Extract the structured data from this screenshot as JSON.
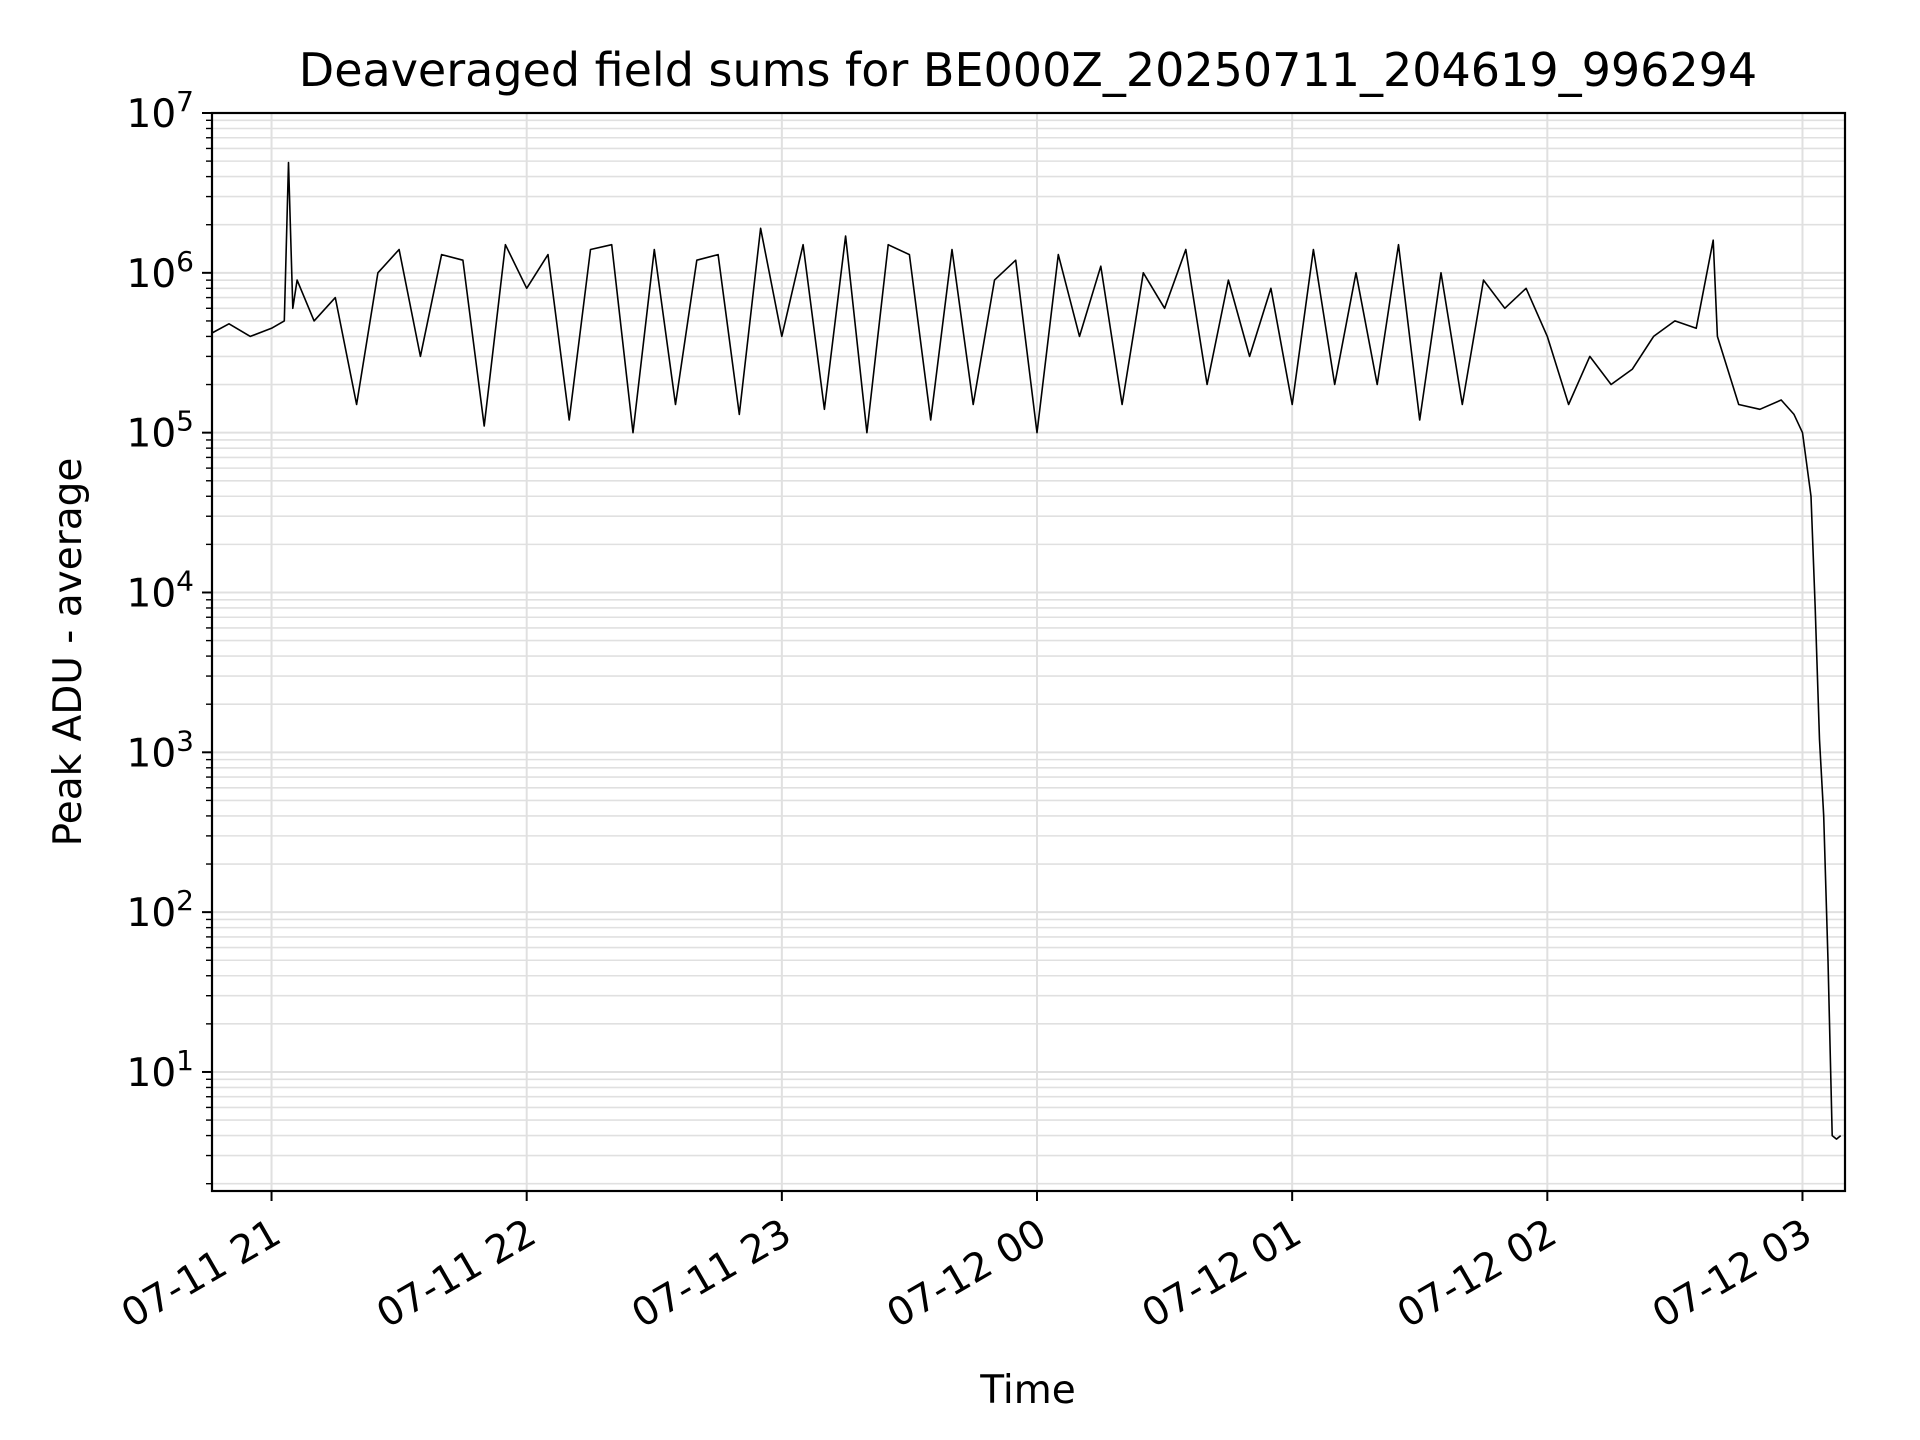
{
  "chart_data": {
    "type": "line",
    "title": "Deaveraged field sums for BE000Z_20250711_204619_996294",
    "xlabel": "Time",
    "ylabel": "Peak ADU - average",
    "yscale": "log",
    "ylim": [
      1.8,
      10000000
    ],
    "xlim": [
      "2025-07-11 20:46",
      "2025-07-12 03:10"
    ],
    "grid": true,
    "legend": "none",
    "line_color": "#000000",
    "grid_color": "#e0e0e0",
    "x_ticks": [
      {
        "t": "2025-07-11 21:00",
        "label": "07-11 21"
      },
      {
        "t": "2025-07-11 22:00",
        "label": "07-11 22"
      },
      {
        "t": "2025-07-11 23:00",
        "label": "07-11 23"
      },
      {
        "t": "2025-07-12 00:00",
        "label": "07-12 00"
      },
      {
        "t": "2025-07-12 01:00",
        "label": "07-12 01"
      },
      {
        "t": "2025-07-12 02:00",
        "label": "07-12 02"
      },
      {
        "t": "2025-07-12 03:00",
        "label": "07-12 03"
      }
    ],
    "y_ticks": [
      {
        "value": 10,
        "base": "10",
        "exp": "1"
      },
      {
        "value": 100,
        "base": "10",
        "exp": "2"
      },
      {
        "value": 1000,
        "base": "10",
        "exp": "3"
      },
      {
        "value": 10000,
        "base": "10",
        "exp": "4"
      },
      {
        "value": 100000,
        "base": "10",
        "exp": "5"
      },
      {
        "value": 1000000,
        "base": "10",
        "exp": "6"
      },
      {
        "value": 10000000,
        "base": "10",
        "exp": "7"
      }
    ],
    "series": [
      {
        "x": [
          "2025-07-11 20:46",
          "2025-07-11 20:50",
          "2025-07-11 20:55",
          "2025-07-11 21:00",
          "2025-07-11 21:03",
          "2025-07-11 21:04",
          "2025-07-11 21:05",
          "2025-07-11 21:06",
          "2025-07-11 21:10",
          "2025-07-11 21:15",
          "2025-07-11 21:20",
          "2025-07-11 21:25",
          "2025-07-11 21:30",
          "2025-07-11 21:35",
          "2025-07-11 21:40",
          "2025-07-11 21:45",
          "2025-07-11 21:50",
          "2025-07-11 21:55",
          "2025-07-11 22:00",
          "2025-07-11 22:05",
          "2025-07-11 22:10",
          "2025-07-11 22:15",
          "2025-07-11 22:20",
          "2025-07-11 22:25",
          "2025-07-11 22:30",
          "2025-07-11 22:35",
          "2025-07-11 22:40",
          "2025-07-11 22:45",
          "2025-07-11 22:50",
          "2025-07-11 22:55",
          "2025-07-11 23:00",
          "2025-07-11 23:05",
          "2025-07-11 23:10",
          "2025-07-11 23:15",
          "2025-07-11 23:20",
          "2025-07-11 23:25",
          "2025-07-11 23:30",
          "2025-07-11 23:35",
          "2025-07-11 23:40",
          "2025-07-11 23:45",
          "2025-07-11 23:50",
          "2025-07-11 23:55",
          "2025-07-12 00:00",
          "2025-07-12 00:05",
          "2025-07-12 00:10",
          "2025-07-12 00:15",
          "2025-07-12 00:20",
          "2025-07-12 00:25",
          "2025-07-12 00:30",
          "2025-07-12 00:35",
          "2025-07-12 00:40",
          "2025-07-12 00:45",
          "2025-07-12 00:50",
          "2025-07-12 00:55",
          "2025-07-12 01:00",
          "2025-07-12 01:05",
          "2025-07-12 01:10",
          "2025-07-12 01:15",
          "2025-07-12 01:20",
          "2025-07-12 01:25",
          "2025-07-12 01:30",
          "2025-07-12 01:35",
          "2025-07-12 01:40",
          "2025-07-12 01:45",
          "2025-07-12 01:50",
          "2025-07-12 01:55",
          "2025-07-12 02:00",
          "2025-07-12 02:05",
          "2025-07-12 02:10",
          "2025-07-12 02:15",
          "2025-07-12 02:20",
          "2025-07-12 02:25",
          "2025-07-12 02:30",
          "2025-07-12 02:35",
          "2025-07-12 02:39",
          "2025-07-12 02:40",
          "2025-07-12 02:45",
          "2025-07-12 02:50",
          "2025-07-12 02:55",
          "2025-07-12 02:58",
          "2025-07-12 03:00",
          "2025-07-12 03:02",
          "2025-07-12 03:03",
          "2025-07-12 03:04",
          "2025-07-12 03:05",
          "2025-07-12 03:06",
          "2025-07-12 03:07",
          "2025-07-12 03:08",
          "2025-07-12 03:09"
        ],
        "y": [
          420000,
          480000,
          400000,
          450000,
          500000,
          4900000,
          600000,
          900000,
          500000,
          700000,
          150000,
          1000000,
          1400000,
          300000,
          1300000,
          1200000,
          110000,
          1500000,
          800000,
          1300000,
          120000,
          1400000,
          1500000,
          100000,
          1400000,
          150000,
          1200000,
          1300000,
          130000,
          1900000,
          400000,
          1500000,
          140000,
          1700000,
          100000,
          1500000,
          1300000,
          120000,
          1400000,
          150000,
          900000,
          1200000,
          100000,
          1300000,
          400000,
          1100000,
          150000,
          1000000,
          600000,
          1400000,
          200000,
          900000,
          300000,
          800000,
          150000,
          1400000,
          200000,
          1000000,
          200000,
          1500000,
          120000,
          1000000,
          150000,
          900000,
          600000,
          800000,
          400000,
          150000,
          300000,
          200000,
          250000,
          400000,
          500000,
          450000,
          1600000,
          400000,
          150000,
          140000,
          160000,
          130000,
          100000,
          40000,
          8000,
          1200,
          400,
          50,
          4,
          3.8,
          4
        ]
      }
    ]
  }
}
